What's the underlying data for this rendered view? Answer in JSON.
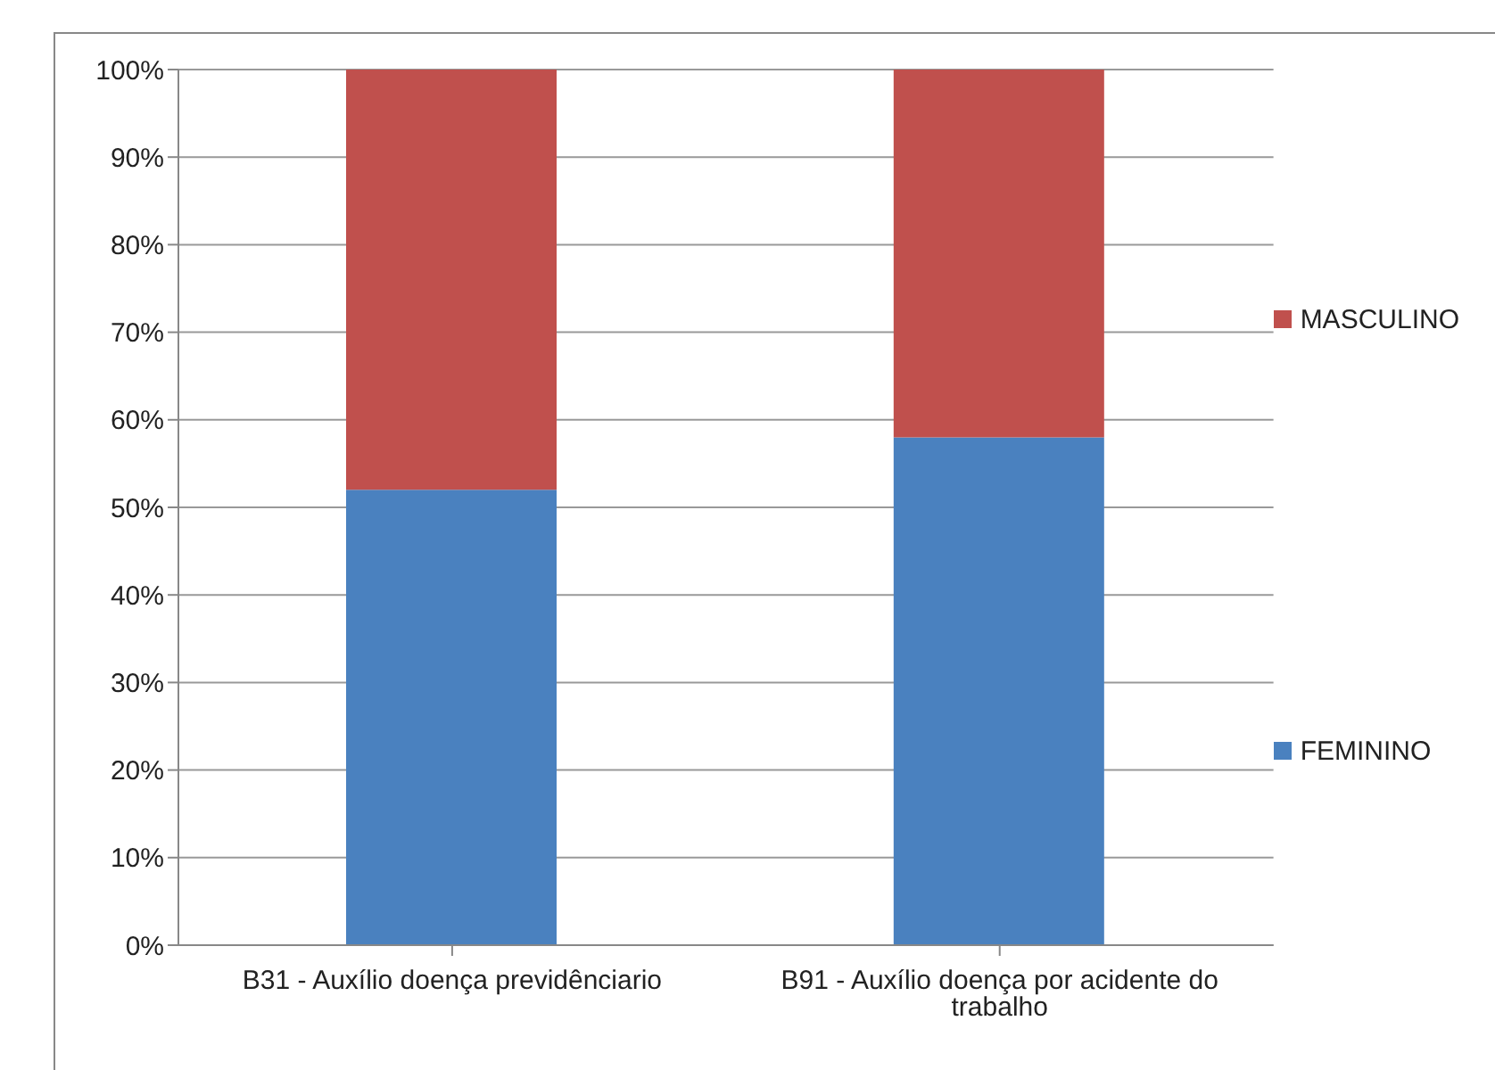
{
  "chart_data": {
    "type": "bar",
    "stacked": true,
    "categories": [
      "B31 - Auxílio doença previdênciario",
      "B91 - Auxílio doença por acidente do trabalho"
    ],
    "series": [
      {
        "name": "FEMININO",
        "color": "#4a81bf",
        "values": [
          52,
          58
        ]
      },
      {
        "name": "MASCULINO",
        "color": "#c0504d",
        "values": [
          48,
          42
        ]
      }
    ],
    "ylim": [
      0,
      100
    ],
    "yticks": [
      {
        "value": 0,
        "label": "0%"
      },
      {
        "value": 10,
        "label": "10%"
      },
      {
        "value": 20,
        "label": "20%"
      },
      {
        "value": 30,
        "label": "30%"
      },
      {
        "value": 40,
        "label": "40%"
      },
      {
        "value": 50,
        "label": "50%"
      },
      {
        "value": 60,
        "label": "60%"
      },
      {
        "value": 70,
        "label": "70%"
      },
      {
        "value": 80,
        "label": "80%"
      },
      {
        "value": 90,
        "label": "90%"
      },
      {
        "value": 100,
        "label": "100%"
      }
    ],
    "grid": "y",
    "legend": "right"
  }
}
